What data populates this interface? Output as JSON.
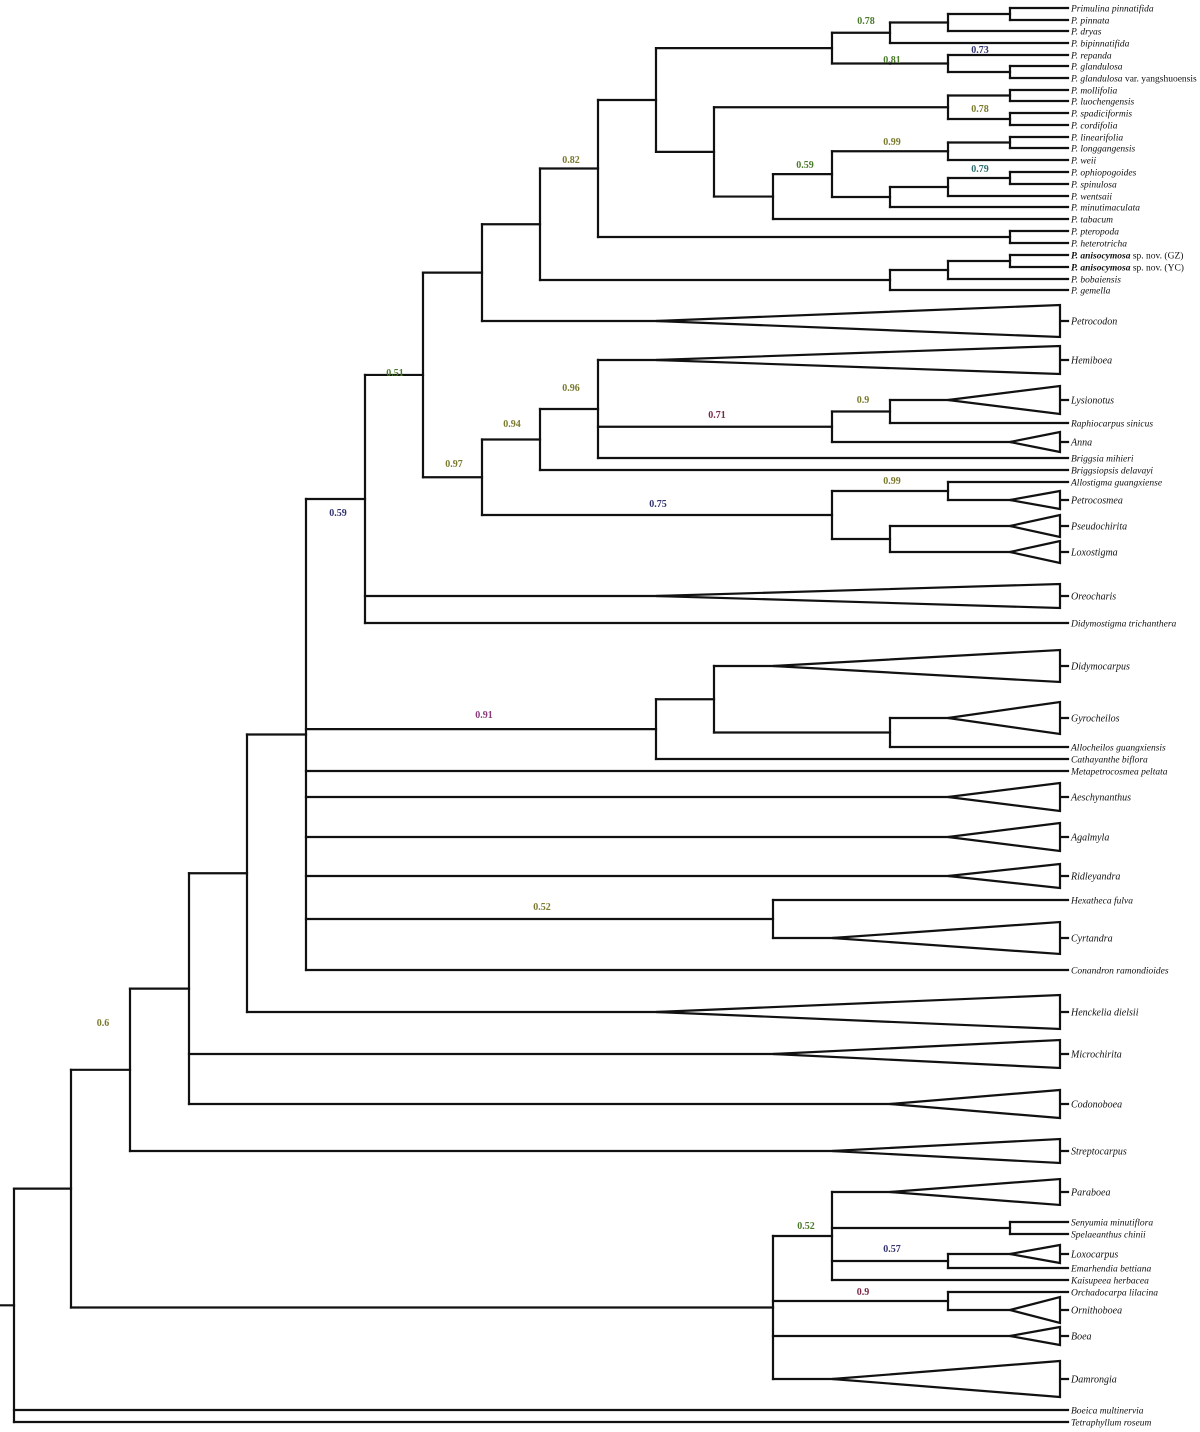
{
  "figure": "Phylogenetic tree",
  "colors": {
    "green": "#4a7a2a",
    "olive": "#7a7a2e",
    "teal": "#2e6e6e",
    "navy": "#333370",
    "maroon": "#7a2848",
    "magenta": "#8a3a78",
    "branch": "#111111"
  },
  "tips": [
    {
      "id": "t1",
      "label": "Primulina pinnatifida"
    },
    {
      "id": "t2",
      "label": "P. pinnata"
    },
    {
      "id": "t3",
      "label": "P. dryas"
    },
    {
      "id": "t4",
      "label": "P. bipinnatifida"
    },
    {
      "id": "t5",
      "label": "P. repanda"
    },
    {
      "id": "t6",
      "label": "P. glandulosa"
    },
    {
      "id": "t7",
      "label": "P. glandulosa",
      "suffix": " var. yangshuoensis"
    },
    {
      "id": "t8",
      "label": "P. mollifolia"
    },
    {
      "id": "t9",
      "label": "P. luochengensis"
    },
    {
      "id": "t10",
      "label": "P. spadiciformis"
    },
    {
      "id": "t11",
      "label": "P. cordifolia"
    },
    {
      "id": "t12",
      "label": "P. linearifolia"
    },
    {
      "id": "t13",
      "label": "P. longgangensis"
    },
    {
      "id": "t14",
      "label": "P. weii"
    },
    {
      "id": "t15",
      "label": "P. ophiopogoides"
    },
    {
      "id": "t16",
      "label": "P. spinulosa"
    },
    {
      "id": "t17",
      "label": "P. wentsaii"
    },
    {
      "id": "t18",
      "label": "P. minutimaculata"
    },
    {
      "id": "t19",
      "label": "P. tabacum"
    },
    {
      "id": "t20",
      "label": "P. pteropoda"
    },
    {
      "id": "t21",
      "label": "P. heterotricha"
    },
    {
      "id": "t22",
      "label": "P. anisocymosa",
      "suffix": " sp. nov. (GZ)",
      "bold": true
    },
    {
      "id": "t23",
      "label": "P. anisocymosa",
      "suffix": " sp. nov. (YC)",
      "bold": true
    },
    {
      "id": "t24",
      "label": "P. bobaiensis"
    },
    {
      "id": "t25",
      "label": "P. gemella"
    },
    {
      "id": "t26",
      "label": "Petrocodon"
    },
    {
      "id": "t27",
      "label": "Hemiboea"
    },
    {
      "id": "t28",
      "label": "Lysionotus"
    },
    {
      "id": "t29",
      "label": "Raphiocarpus sinicus"
    },
    {
      "id": "t30",
      "label": "Anna"
    },
    {
      "id": "t31",
      "label": "Briggsia mihieri"
    },
    {
      "id": "t32",
      "label": "Briggsiopsis delavayi"
    },
    {
      "id": "t33",
      "label": "Allostigma guangxiense"
    },
    {
      "id": "t34",
      "label": "Petrocosmea"
    },
    {
      "id": "t35",
      "label": "Pseudochirita"
    },
    {
      "id": "t36",
      "label": "Loxostigma"
    },
    {
      "id": "t37",
      "label": "Oreocharis"
    },
    {
      "id": "t38",
      "label": "Didymostigma trichanthera"
    },
    {
      "id": "t39",
      "label": "Didymocarpus"
    },
    {
      "id": "t40",
      "label": "Gyrocheilos"
    },
    {
      "id": "t41",
      "label": "Allocheilos guangxiensis"
    },
    {
      "id": "t42",
      "label": "Cathayanthe biflora"
    },
    {
      "id": "t43",
      "label": "Metapetrocosmea peltata"
    },
    {
      "id": "t44",
      "label": "Aeschynanthus"
    },
    {
      "id": "t45",
      "label": "Agalmyla"
    },
    {
      "id": "t46",
      "label": "Ridleyandra"
    },
    {
      "id": "t47",
      "label": "Hexatheca fulva"
    },
    {
      "id": "t48",
      "label": "Cyrtandra"
    },
    {
      "id": "t49",
      "label": "Conandron ramondioides"
    },
    {
      "id": "t50",
      "label": "Henckelia dielsii"
    },
    {
      "id": "t51",
      "label": "Microchirita"
    },
    {
      "id": "t52",
      "label": "Codonoboea"
    },
    {
      "id": "t53",
      "label": "Streptocarpus"
    },
    {
      "id": "t54",
      "label": "Paraboea"
    },
    {
      "id": "t55",
      "label": "Senyumia minutiflora"
    },
    {
      "id": "t56",
      "label": "Spelaeanthus chinii"
    },
    {
      "id": "t57",
      "label": "Loxocarpus"
    },
    {
      "id": "t58",
      "label": "Emarhendia bettiana"
    },
    {
      "id": "t59",
      "label": "Kaisupeea herbacea"
    },
    {
      "id": "t60",
      "label": "Orchadocarpa lilacina"
    },
    {
      "id": "t61",
      "label": "Ornithoboea"
    },
    {
      "id": "t62",
      "label": "Boea"
    },
    {
      "id": "t63",
      "label": "Damrongia"
    },
    {
      "id": "t64",
      "label": "Boeica multinervia"
    },
    {
      "id": "t65",
      "label": "Tetraphyllum roseum"
    }
  ],
  "support_values": [
    {
      "id": "s1",
      "value": "0.78",
      "color": "green"
    },
    {
      "id": "s2",
      "value": "0.73",
      "color": "navy"
    },
    {
      "id": "s3",
      "value": "0.81",
      "color": "green"
    },
    {
      "id": "s4",
      "value": "0.78",
      "color": "olive"
    },
    {
      "id": "s5",
      "value": "0.99",
      "color": "olive"
    },
    {
      "id": "s6",
      "value": "0.59",
      "color": "green"
    },
    {
      "id": "s7",
      "value": "0.79",
      "color": "teal"
    },
    {
      "id": "s8",
      "value": "0.82",
      "color": "olive"
    },
    {
      "id": "s9",
      "value": "0.51",
      "color": "green"
    },
    {
      "id": "s10",
      "value": "0.96",
      "color": "olive"
    },
    {
      "id": "s11",
      "value": "0.9",
      "color": "olive"
    },
    {
      "id": "s12",
      "value": "0.71",
      "color": "maroon"
    },
    {
      "id": "s13",
      "value": "0.94",
      "color": "olive"
    },
    {
      "id": "s14",
      "value": "0.97",
      "color": "olive"
    },
    {
      "id": "s15",
      "value": "0.99",
      "color": "olive"
    },
    {
      "id": "s16",
      "value": "0.75",
      "color": "navy"
    },
    {
      "id": "s17",
      "value": "0.59",
      "color": "navy"
    },
    {
      "id": "s18",
      "value": "0.91",
      "color": "magenta"
    },
    {
      "id": "s19",
      "value": "0.52",
      "color": "olive"
    },
    {
      "id": "s20",
      "value": "0.6",
      "color": "olive"
    },
    {
      "id": "s21",
      "value": "0.52",
      "color": "green"
    },
    {
      "id": "s22",
      "value": "0.57",
      "color": "navy"
    },
    {
      "id": "s23",
      "value": "0.9",
      "color": "maroon"
    }
  ]
}
